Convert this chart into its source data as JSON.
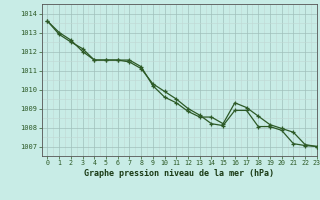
{
  "title": "Graphe pression niveau de la mer (hPa)",
  "bg_color": "#c8ece6",
  "line_color": "#2d5a27",
  "xlim": [
    -0.5,
    23
  ],
  "ylim": [
    1006.5,
    1014.5
  ],
  "yticks": [
    1007,
    1008,
    1009,
    1010,
    1011,
    1012,
    1013,
    1014
  ],
  "xticks": [
    0,
    1,
    2,
    3,
    4,
    5,
    6,
    7,
    8,
    9,
    10,
    11,
    12,
    13,
    14,
    15,
    16,
    17,
    18,
    19,
    20,
    21,
    22,
    23
  ],
  "series1_x": [
    0,
    1,
    2,
    3,
    4,
    5,
    6,
    7,
    8,
    9,
    10,
    11,
    12,
    13,
    14,
    15,
    16,
    17,
    18,
    19,
    20,
    21,
    22,
    23
  ],
  "series1_y": [
    1013.6,
    1013.0,
    1012.6,
    1012.0,
    1011.55,
    1011.55,
    1011.55,
    1011.45,
    1011.1,
    1010.3,
    1009.9,
    1009.5,
    1009.0,
    1008.65,
    1008.2,
    1008.1,
    1008.9,
    1008.9,
    1008.05,
    1008.05,
    1007.85,
    1007.15,
    1007.05,
    1007.0
  ],
  "series2_x": [
    0,
    1,
    2,
    3,
    4,
    5,
    6,
    7,
    8,
    9,
    10,
    11,
    12,
    13,
    14,
    15,
    16,
    17,
    18,
    19,
    20,
    21,
    22,
    23
  ],
  "series2_y": [
    1013.6,
    1012.9,
    1012.5,
    1012.15,
    1011.55,
    1011.55,
    1011.55,
    1011.55,
    1011.2,
    1010.2,
    1009.6,
    1009.3,
    1008.85,
    1008.55,
    1008.55,
    1008.2,
    1009.3,
    1009.05,
    1008.6,
    1008.15,
    1007.95,
    1007.75,
    1007.1,
    1007.0
  ]
}
